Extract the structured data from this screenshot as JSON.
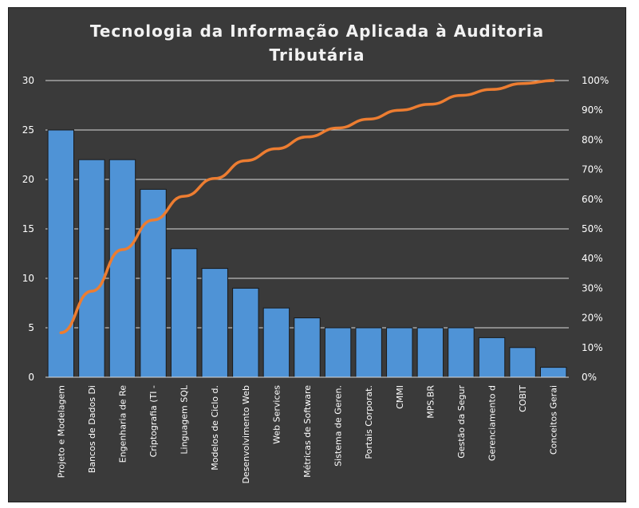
{
  "chart_data": {
    "type": "bar",
    "title_lines": [
      "Tecnologia da Informação Aplicada à Auditoria",
      "Tributária"
    ],
    "categories": [
      "Projeto e Modelagem",
      "Bancos de Dados Di",
      "Engenharia de Re",
      "Criptografia (TI -",
      "Linguagem SQL",
      "Modelos de Ciclo d.",
      "Desenvolvimento Web",
      "Web Services",
      "Métricas de Software",
      "Sistema de Geren.",
      "Portais Corporat.",
      "CMMI",
      "MPS.BR",
      "Gestão da Segur",
      "Gerenciamento d",
      "COBIT",
      "Conceitos Gerai"
    ],
    "series": [
      {
        "values": [
          25,
          22,
          22,
          19,
          13,
          11,
          9,
          7,
          6,
          5,
          5,
          5,
          5,
          5,
          4,
          3,
          1
        ]
      },
      {
        "axis": "right",
        "type": "line",
        "values": [
          15,
          29,
          43,
          53,
          61,
          67,
          73,
          77,
          81,
          84,
          87,
          90,
          92,
          95,
          97,
          99,
          100
        ]
      }
    ],
    "y_left": {
      "min": 0,
      "max": 30,
      "ticks": [
        "0",
        "5",
        "10",
        "15",
        "20",
        "25",
        "30"
      ]
    },
    "y_right": {
      "min": 0,
      "max": 100,
      "ticks": [
        "0%",
        "10%",
        "20%",
        "30%",
        "40%",
        "50%",
        "60%",
        "70%",
        "80%",
        "90%",
        "100%"
      ]
    },
    "grid": true,
    "colors": {
      "background": "#3a3a3a",
      "bar": "#4f93d6",
      "bar_edge": "#1a1a1a",
      "line": "#ed7d31",
      "grid": "#d9d9d9",
      "text": "#ffffff"
    }
  }
}
